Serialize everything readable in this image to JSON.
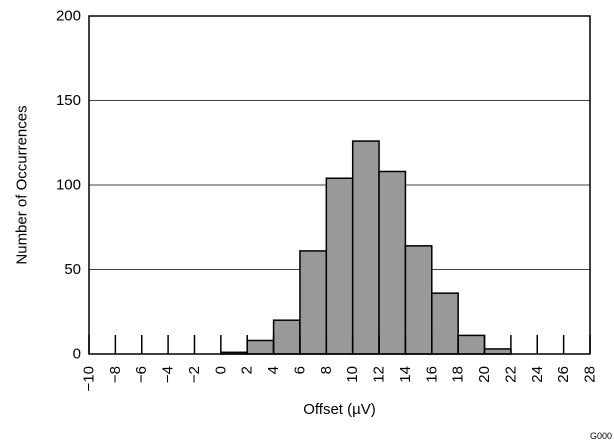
{
  "chart_data": {
    "type": "bar",
    "xlabel": "Offset (µV)",
    "ylabel": "Number of Occurrences",
    "ylim": [
      0,
      200
    ],
    "yticks": [
      0,
      50,
      100,
      150,
      200
    ],
    "xlim": [
      -10,
      28
    ],
    "xticks": [
      -10,
      -8,
      -6,
      -4,
      -2,
      0,
      2,
      4,
      6,
      8,
      10,
      12,
      14,
      16,
      18,
      20,
      22,
      24,
      26,
      28
    ],
    "xtick_labels": [
      "−10",
      "−8",
      "−6",
      "−4",
      "−2",
      "0",
      "2",
      "4",
      "6",
      "8",
      "10",
      "12",
      "14",
      "16",
      "18",
      "20",
      "22",
      "24",
      "26",
      "28"
    ],
    "grid": "horizontal",
    "bins": [
      {
        "x0": 0,
        "x1": 2,
        "value": 1
      },
      {
        "x0": 2,
        "x1": 4,
        "value": 8
      },
      {
        "x0": 4,
        "x1": 6,
        "value": 20
      },
      {
        "x0": 6,
        "x1": 8,
        "value": 61
      },
      {
        "x0": 8,
        "x1": 10,
        "value": 104
      },
      {
        "x0": 10,
        "x1": 12,
        "value": 126
      },
      {
        "x0": 12,
        "x1": 14,
        "value": 108
      },
      {
        "x0": 14,
        "x1": 16,
        "value": 64
      },
      {
        "x0": 16,
        "x1": 18,
        "value": 36
      },
      {
        "x0": 18,
        "x1": 20,
        "value": 11
      },
      {
        "x0": 20,
        "x1": 22,
        "value": 3
      }
    ],
    "bar_color": "#999999",
    "figure_code": "G000"
  }
}
